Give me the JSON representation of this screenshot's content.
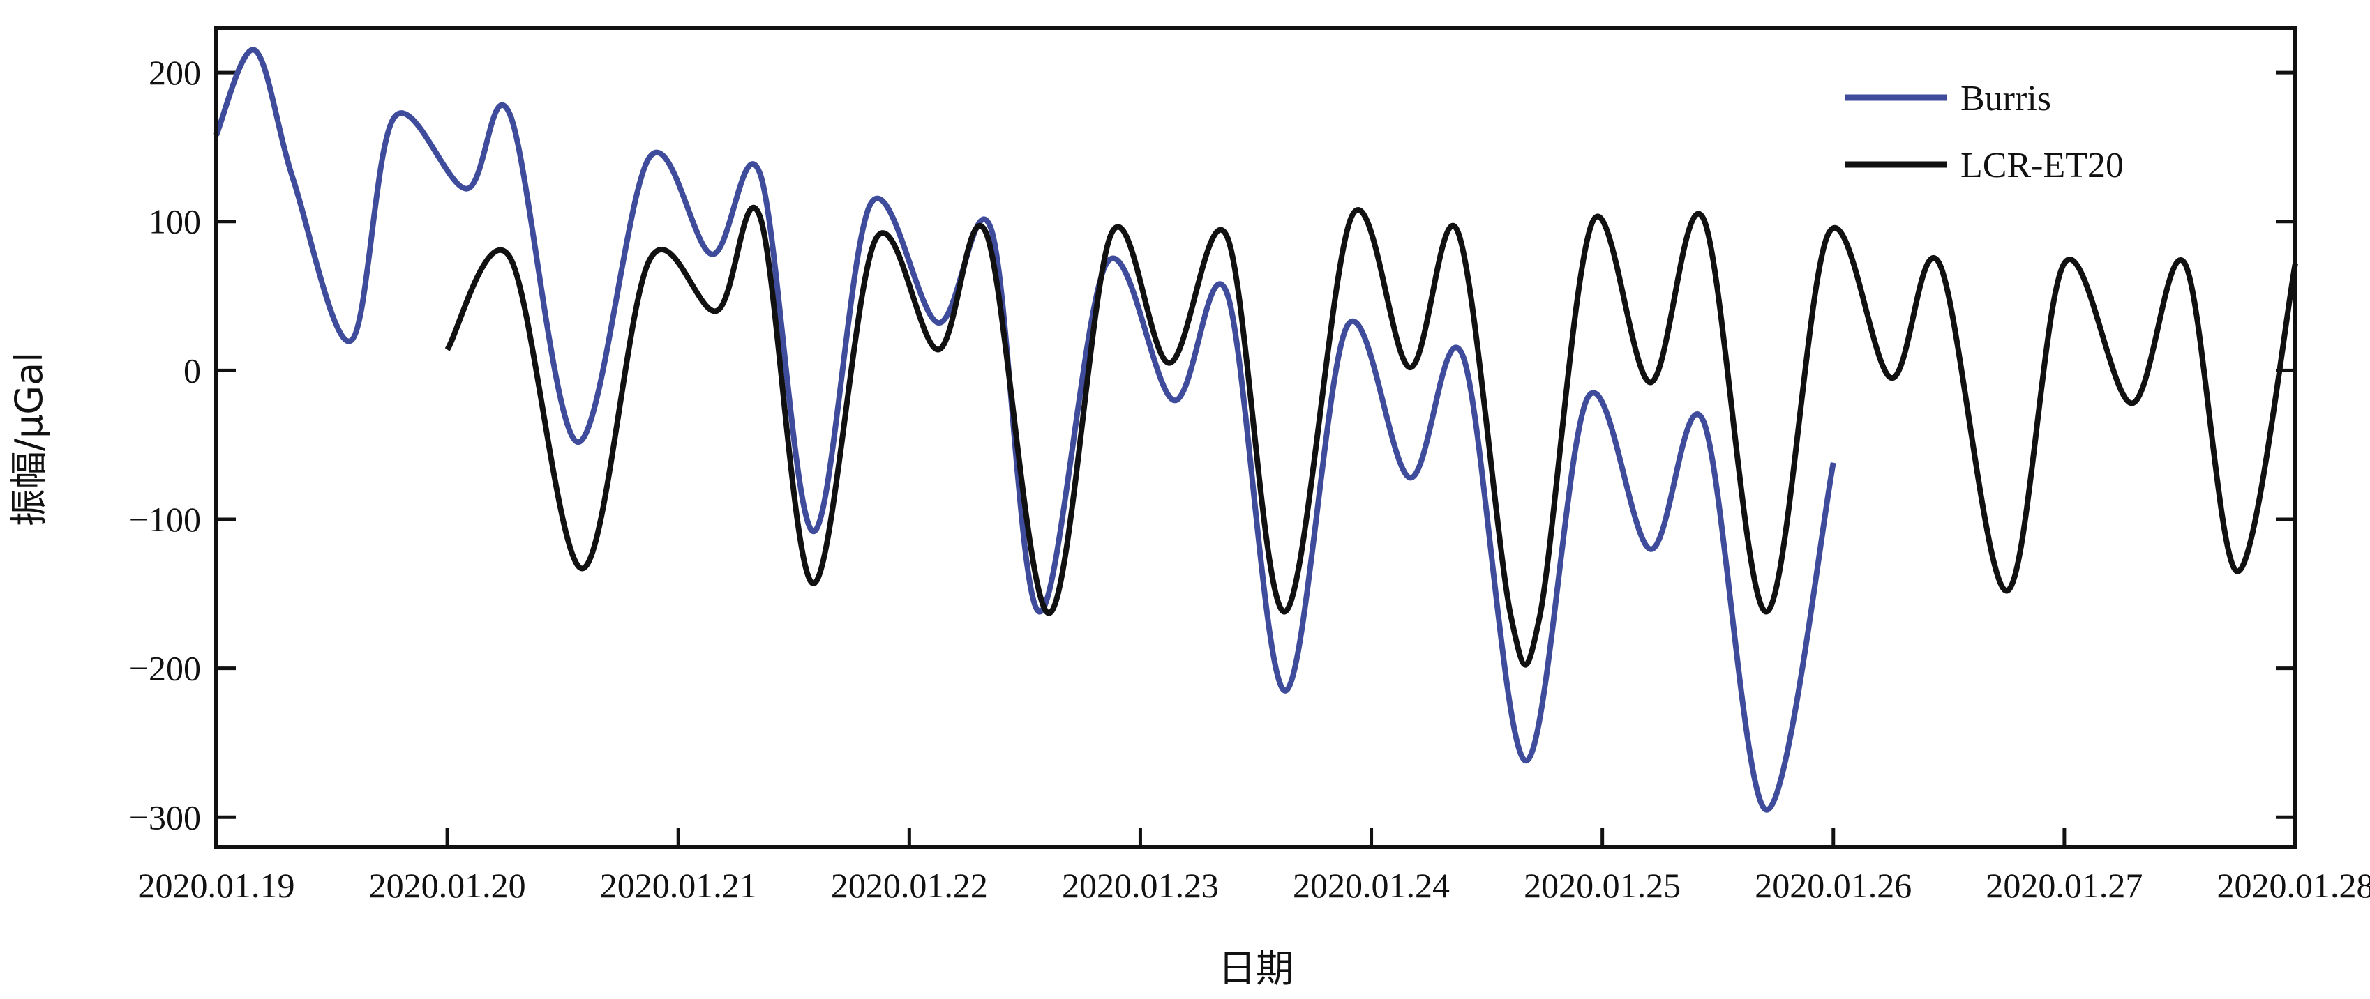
{
  "chart_data": {
    "type": "line",
    "title": "",
    "xlabel": "日期",
    "ylabel": "振幅/μGal",
    "xlim": [
      "2020-01-19",
      "2020-01-28"
    ],
    "ylim": [
      -320,
      230
    ],
    "x_ticks": [
      "2020.01.19",
      "2020.01.20",
      "2020.01.21",
      "2020.01.22",
      "2020.01.23",
      "2020.01.24",
      "2020.01.25",
      "2020.01.26",
      "2020.01.27",
      "2020.01.28"
    ],
    "y_ticks": [
      200,
      100,
      0,
      -100,
      -200,
      -300
    ],
    "y_tick_labels": [
      "200",
      "100",
      "0",
      "−100",
      "−200",
      "−300"
    ],
    "legend_position": "top-right",
    "series": [
      {
        "name": "Burris",
        "color": "#3f4c9c",
        "x": [
          "2020-01-19 00:00",
          "2020-01-19 04:00",
          "2020-01-19 08:00",
          "2020-01-19 14:00",
          "2020-01-19 18:30",
          "2020-01-20 02:00",
          "2020-01-20 06:30",
          "2020-01-20 13:30",
          "2020-01-20 21:00",
          "2020-01-21 03:30",
          "2020-01-21 08:30",
          "2020-01-21 14:00",
          "2020-01-21 20:00",
          "2020-01-22 03:00",
          "2020-01-22 08:30",
          "2020-01-22 13:30",
          "2020-01-22 20:30",
          "2020-01-23 03:30",
          "2020-01-23 09:00",
          "2020-01-23 15:00",
          "2020-01-23 21:30",
          "2020-01-24 04:00",
          "2020-01-24 09:30",
          "2020-01-24 16:00",
          "2020-01-24 22:30",
          "2020-01-25 05:00",
          "2020-01-25 10:30",
          "2020-01-25 17:00",
          "2020-01-26 00:00"
        ],
        "y": [
          158,
          215,
          128,
          20,
          170,
          122,
          172,
          -48,
          143,
          78,
          132,
          -108,
          112,
          32,
          95,
          -162,
          72,
          -20,
          52,
          -215,
          30,
          -72,
          10,
          -262,
          -18,
          -120,
          -34,
          -295,
          -62
        ]
      },
      {
        "name": "LCR-ET20",
        "color": "#111111",
        "x": [
          "2020-01-20 00:00",
          "2020-01-20 06:30",
          "2020-01-20 14:00",
          "2020-01-20 21:00",
          "2020-01-21 04:00",
          "2020-01-21 08:30",
          "2020-01-21 14:00",
          "2020-01-21 20:30",
          "2020-01-22 03:00",
          "2020-01-22 08:00",
          "2020-01-22 14:30",
          "2020-01-22 21:00",
          "2020-01-23 03:00",
          "2020-01-23 09:00",
          "2020-01-23 15:00",
          "2020-01-23 22:00",
          "2020-01-24 04:00",
          "2020-01-24 09:00",
          "2020-01-24 14:30",
          "2020-01-24 17:30",
          "2020-01-24 23:00",
          "2020-01-25 05:00",
          "2020-01-25 10:30",
          "2020-01-25 17:00",
          "2020-01-25 23:30",
          "2020-01-26 06:00",
          "2020-01-26 11:00",
          "2020-01-26 18:00",
          "2020-01-27 00:00",
          "2020-01-27 07:00",
          "2020-01-27 12:30",
          "2020-01-27 18:00",
          "2020-01-28 00:00"
        ],
        "y": [
          14,
          76,
          -133,
          74,
          40,
          103,
          -143,
          88,
          14,
          92,
          -163,
          92,
          5,
          90,
          -162,
          104,
          2,
          93,
          -165,
          -165,
          100,
          -8,
          102,
          -162,
          92,
          -5,
          72,
          -148,
          72,
          -22,
          72,
          -135,
          72
        ]
      }
    ]
  }
}
